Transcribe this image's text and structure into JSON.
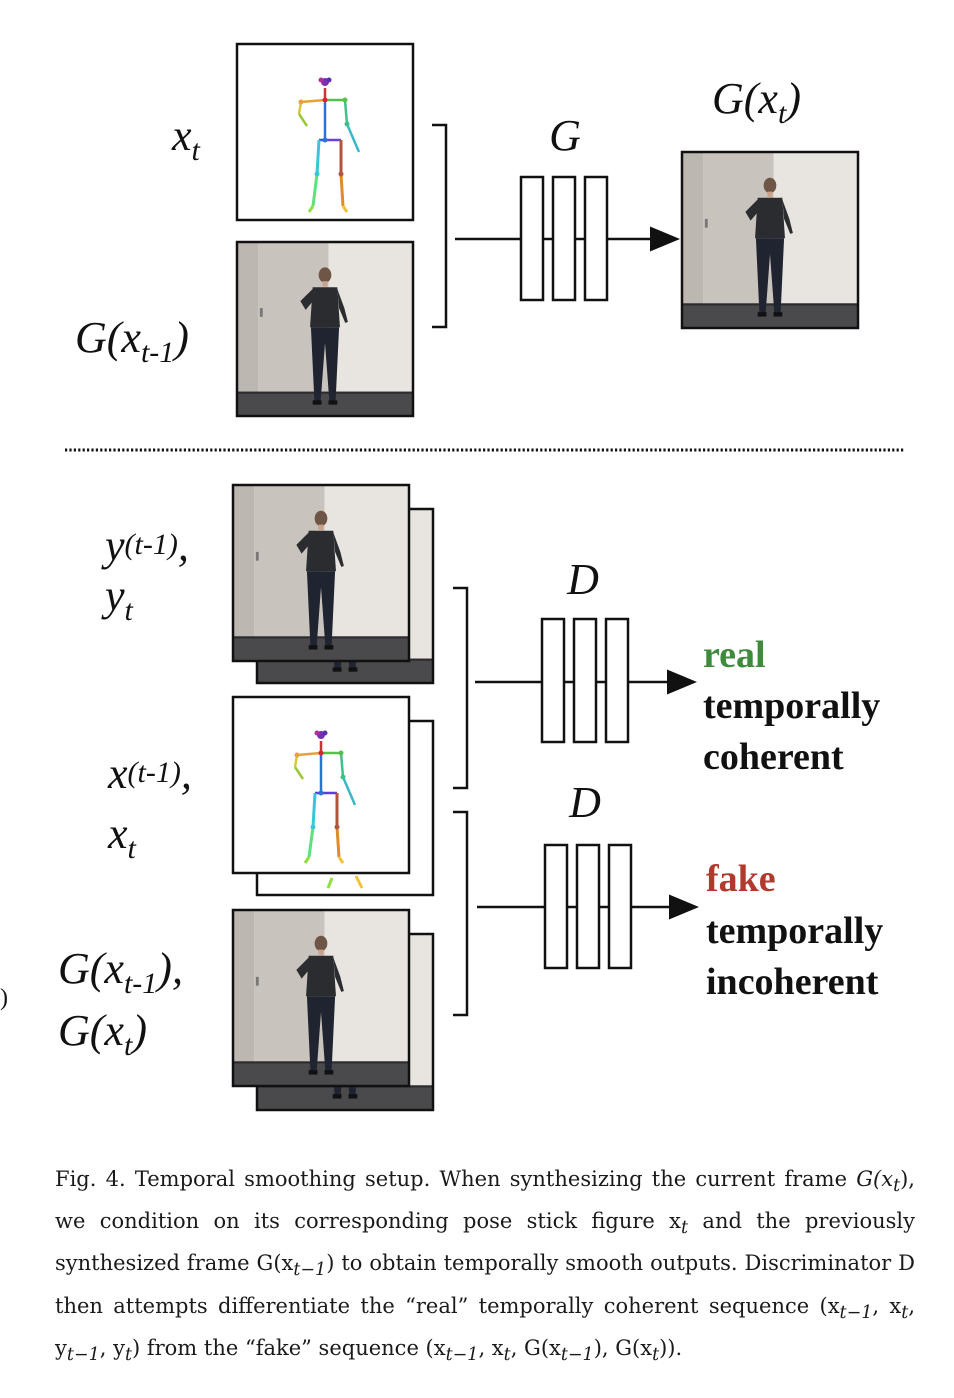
{
  "colors": {
    "real": "#3e8b3e",
    "fake": "#b03a2e",
    "ink": "#111111",
    "photo_wall": "#e8e5e1",
    "photo_door": "#c9c3bd",
    "photo_floor": "#4a4a4c"
  },
  "top": {
    "label_xt": "x",
    "label_xt_sub": "t",
    "label_gprev": "G(x",
    "label_gprev_sub": "t-1",
    "label_gprev_close": ")",
    "generator_label": "G",
    "output_label": "G(x",
    "output_label_sub": "t",
    "output_label_close": ")"
  },
  "bottom": {
    "real_pair_label_1": "y",
    "real_pair_label_1_sub": "(t-1)",
    "real_pair_label_1_tail": ",",
    "real_pair_label_2": "y",
    "real_pair_label_2_sub": "t",
    "pose_pair_label_1": "x",
    "pose_pair_label_1_sub": "(t-1)",
    "pose_pair_label_1_tail": ",",
    "pose_pair_label_2": "x",
    "pose_pair_label_2_sub": "t",
    "fake_pair_label_1": "G(x",
    "fake_pair_label_1_sub": "t-1",
    "fake_pair_label_1_tail": "),",
    "fake_pair_label_2": "G(x",
    "fake_pair_label_2_sub": "t",
    "fake_pair_label_2_tail": ")",
    "disc_label_1": "D",
    "disc_label_2": "D",
    "real_word": "real",
    "real_desc_1": "temporally",
    "real_desc_2": "coherent",
    "fake_word": "fake",
    "fake_desc_1": "temporally",
    "fake_desc_2": "incoherent",
    "stray_paren": ")"
  },
  "caption": {
    "fig_label": "Fig. 4.",
    "text_1": "Temporal smoothing setup. When synthesizing the current frame",
    "text_2": "G(x",
    "text_2_sub": "t",
    "text_3": "), we condition on its corresponding pose stick figure x",
    "text_3_sub": "t",
    "text_4": "and the previously synthesized frame G(x",
    "text_4_sub": "t−1",
    "text_5": ") to obtain temporally smooth outputs. Discriminator D then attempts differentiate the “real” temporally coherent sequence (x",
    "text_5_sub": "t−1",
    "text_6": ", x",
    "text_6_sub": "t",
    "text_7": ", y",
    "text_7_sub": "t−1",
    "text_8": ", y",
    "text_8_sub": "t",
    "text_9": ") from the “fake” sequence (x",
    "text_9_sub": "t−1",
    "text_10": ", x",
    "text_10_sub": "t",
    "text_11": ", G(x",
    "text_11_sub": "t−1",
    "text_12": "), G(x",
    "text_12_sub": "t",
    "text_13": "))."
  }
}
